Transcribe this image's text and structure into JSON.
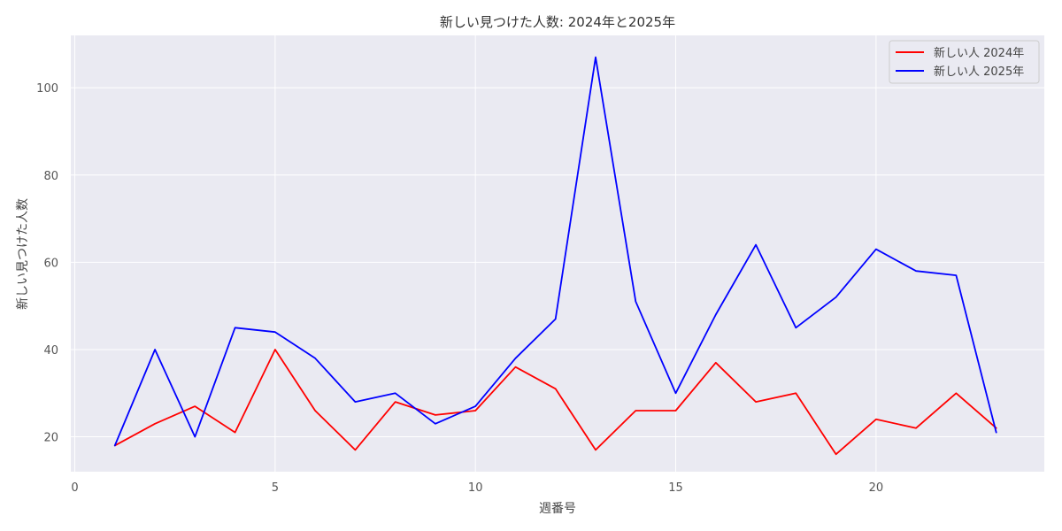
{
  "chart_data": {
    "type": "line",
    "title": "新しい見つけた人数: 2024年と2025年",
    "xlabel": "週番号",
    "ylabel": "新しい見つけた人数",
    "xlim": [
      -0.1,
      24.2
    ],
    "ylim": [
      12,
      112
    ],
    "xticks": [
      0,
      5,
      10,
      15,
      20
    ],
    "yticks": [
      20,
      40,
      60,
      80,
      100
    ],
    "grid": true,
    "legend_position": "top-right",
    "x": [
      1,
      2,
      3,
      4,
      5,
      6,
      7,
      8,
      9,
      10,
      11,
      12,
      13,
      14,
      15,
      16,
      17,
      18,
      19,
      20,
      21,
      22,
      23
    ],
    "series": [
      {
        "name": "新しい人 2024年",
        "color": "#ff0000",
        "values": [
          18,
          23,
          27,
          21,
          40,
          26,
          17,
          28,
          25,
          26,
          36,
          31,
          17,
          26,
          26,
          37,
          28,
          30,
          16,
          24,
          22,
          30,
          22
        ]
      },
      {
        "name": "新しい人 2025年",
        "color": "#0000ff",
        "values": [
          18,
          40,
          20,
          45,
          44,
          38,
          28,
          30,
          23,
          27,
          38,
          47,
          107,
          51,
          30,
          48,
          64,
          45,
          52,
          63,
          58,
          57,
          21
        ]
      }
    ]
  }
}
